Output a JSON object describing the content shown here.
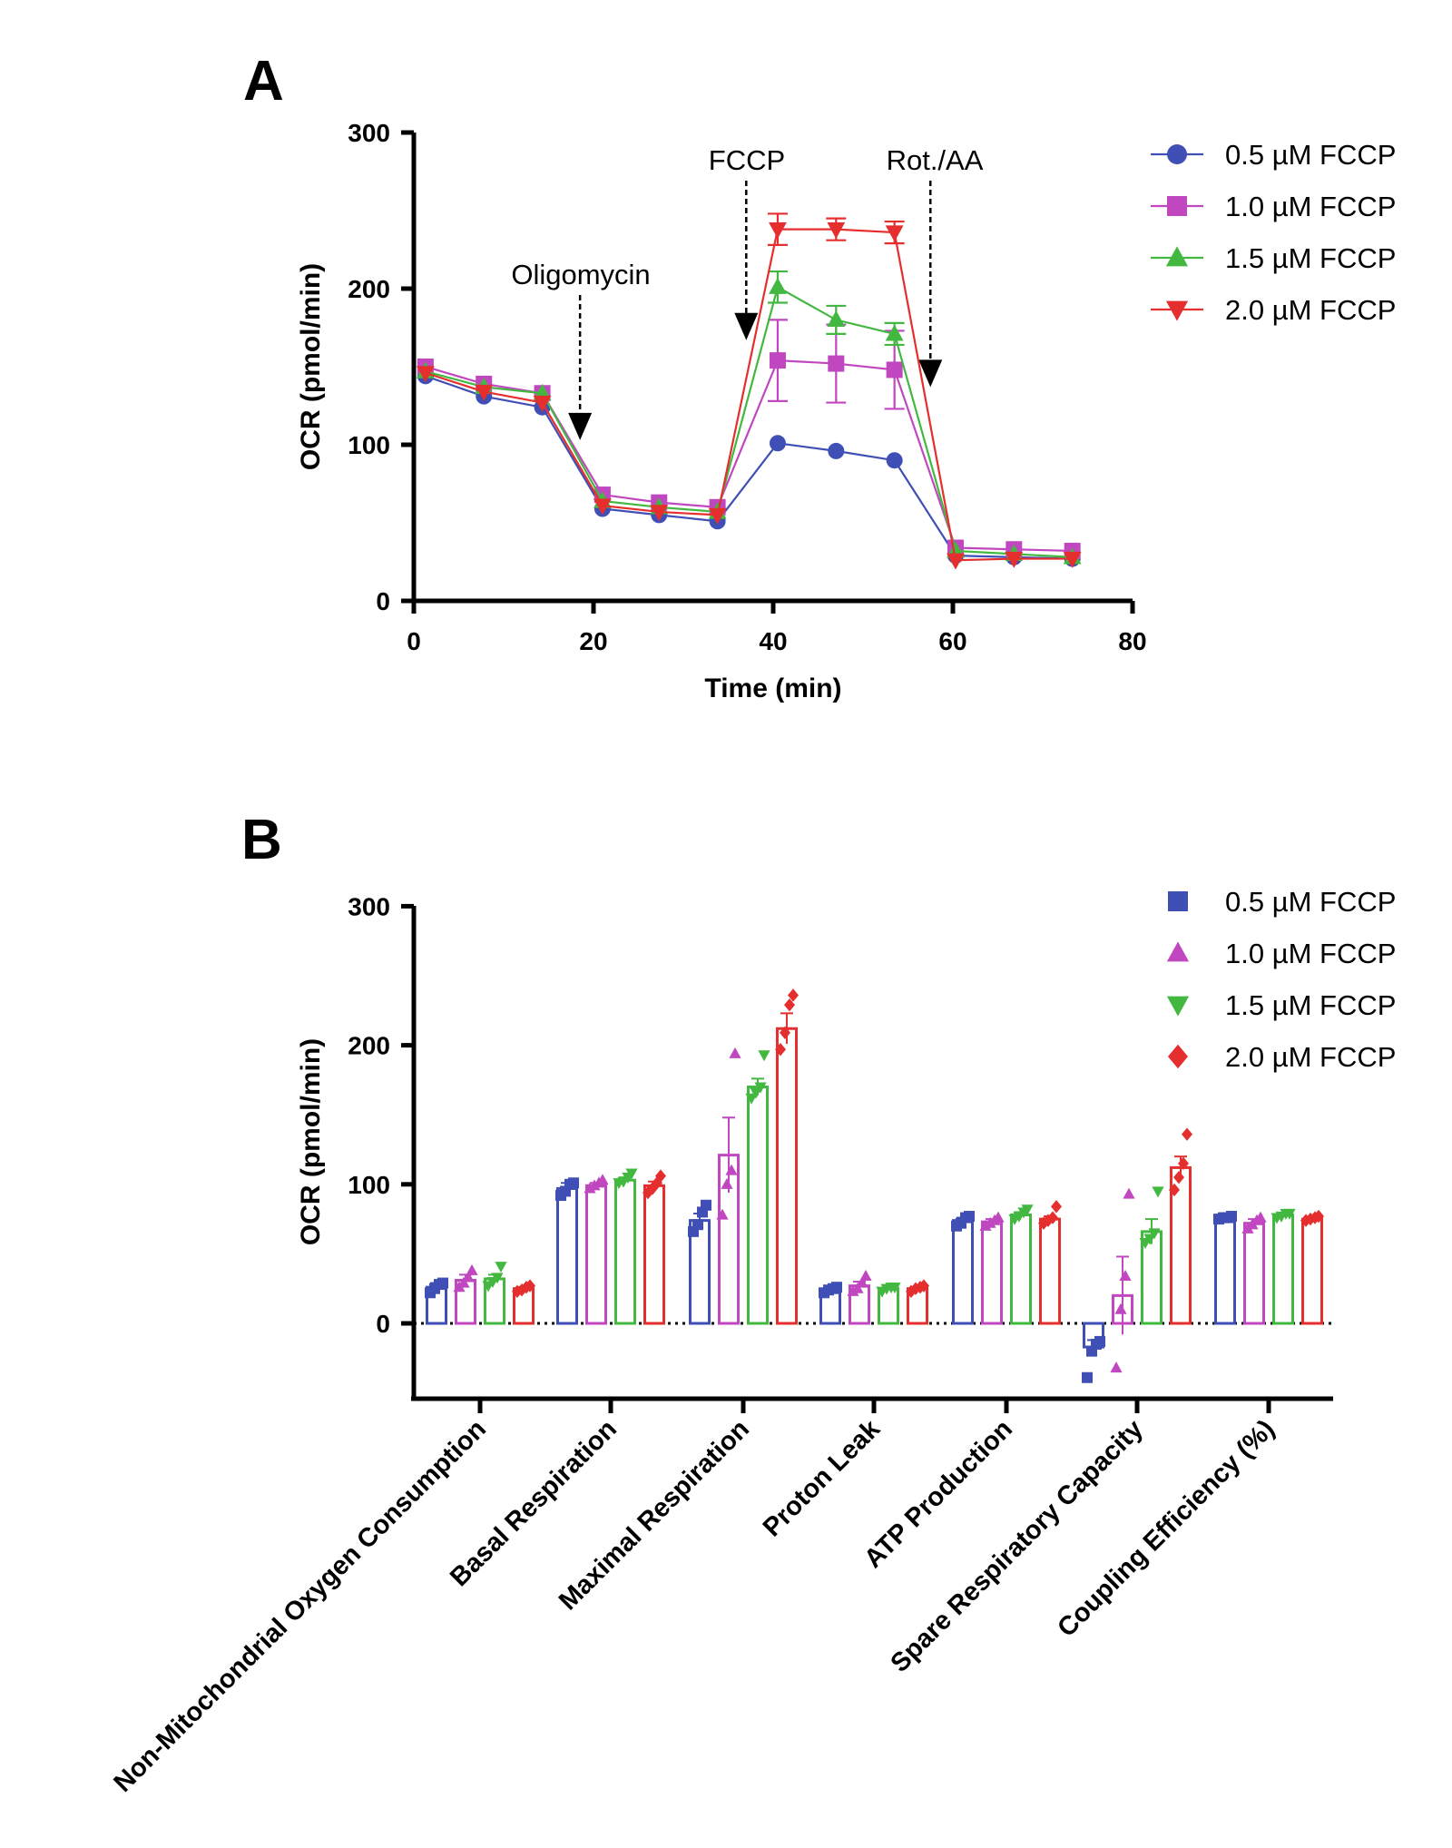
{
  "chart_data": [
    {
      "panel": "A",
      "type": "line",
      "xlabel": "Time (min)",
      "ylabel": "OCR (pmol/min)",
      "xlim": [
        0,
        80
      ],
      "ylim": [
        0,
        300
      ],
      "xticks": [
        0,
        20,
        40,
        60,
        80
      ],
      "yticks": [
        0,
        100,
        200,
        300
      ],
      "x": [
        1.3,
        7.8,
        14.3,
        21,
        27.3,
        33.8,
        40.5,
        47,
        53.5,
        60.3,
        66.8,
        73.3
      ],
      "series": [
        {
          "name": "0.5 µM FCCP",
          "color": "#3f4fb5",
          "marker": "circle",
          "values": [
            144,
            131,
            124,
            59,
            55,
            51,
            101,
            96,
            90,
            29,
            28,
            27
          ],
          "errors": [
            0,
            0,
            0,
            0,
            0,
            0,
            0,
            0,
            0,
            0,
            0,
            0
          ]
        },
        {
          "name": "1.0 µM FCCP",
          "color": "#c047bf",
          "marker": "square",
          "values": [
            150,
            139,
            133,
            68,
            63,
            60,
            154,
            152,
            148,
            34,
            33,
            32
          ],
          "errors": [
            0,
            0,
            0,
            0,
            0,
            0,
            26,
            25,
            25,
            0,
            0,
            0
          ]
        },
        {
          "name": "1.5 µM FCCP",
          "color": "#43b840",
          "marker": "triangle-up",
          "values": [
            147,
            137,
            133,
            64,
            60,
            57,
            201,
            180,
            171,
            32,
            30,
            28
          ],
          "errors": [
            0,
            0,
            0,
            0,
            0,
            0,
            10,
            9,
            7,
            0,
            0,
            0
          ]
        },
        {
          "name": "2.0 µM FCCP",
          "color": "#e52e2e",
          "marker": "triangle-down",
          "values": [
            146,
            134,
            127,
            61,
            57,
            55,
            238,
            238,
            236,
            26,
            27,
            27
          ],
          "errors": [
            0,
            0,
            0,
            0,
            0,
            0,
            10,
            7,
            7,
            0,
            0,
            0
          ]
        }
      ],
      "annotations": [
        {
          "text": "Oligomycin",
          "x": 18.5,
          "arrow_tip_y": 103
        },
        {
          "text": "FCCP",
          "x": 37,
          "arrow_tip_y": 167
        },
        {
          "text": "Rot./AA",
          "x": 57.5,
          "arrow_tip_y": 137
        }
      ],
      "legend_position": "top-right"
    },
    {
      "panel": "B",
      "type": "bar",
      "ylabel": "OCR (pmol/min)",
      "ylim": [
        -45,
        300
      ],
      "yticks": [
        0,
        100,
        200,
        300
      ],
      "categories": [
        "Non-Mitochondrial Oxygen Consumption",
        "Basal Respiration",
        "Maximal Respiration",
        "Proton Leak",
        "ATP Production",
        "Spare Respiratory Capacity",
        "Coupling Efficiency (%)"
      ],
      "series": [
        {
          "name": "0.5 µM FCCP",
          "color": "#3f4fb5",
          "marker": "square",
          "values": [
            26,
            97,
            74,
            24,
            74,
            -17,
            76
          ],
          "errors": [
            3,
            4,
            5,
            1,
            2,
            5,
            1
          ],
          "points": [
            [
              22,
              25,
              28,
              29
            ],
            [
              92,
              95,
              100,
              101
            ],
            [
              66,
              71,
              80,
              85
            ],
            [
              22,
              24,
              25,
              26
            ],
            [
              70,
              72,
              76,
              77
            ],
            [
              -39,
              -20,
              -15,
              -13
            ],
            [
              75,
              76,
              76,
              77
            ]
          ]
        },
        {
          "name": "1.0 µM FCCP",
          "color": "#c047bf",
          "marker": "triangle-up",
          "values": [
            31,
            99,
            121,
            27,
            73,
            20,
            72
          ],
          "errors": [
            4,
            2,
            27,
            3,
            2,
            28,
            3
          ],
          "points": [
            [
              26,
              29,
              33,
              38
            ],
            [
              97,
              99,
              101,
              103
            ],
            [
              78,
              100,
              110,
              194
            ],
            [
              23,
              25,
              29,
              34
            ],
            [
              70,
              72,
              74,
              76
            ],
            [
              -32,
              10,
              34,
              93
            ],
            [
              68,
              71,
              74,
              76
            ]
          ]
        },
        {
          "name": "1.5 µM FCCP",
          "color": "#43b840",
          "marker": "triangle-down",
          "values": [
            32,
            103,
            170,
            25,
            78,
            66,
            78
          ],
          "errors": [
            3,
            2,
            6,
            1,
            2,
            9,
            1
          ],
          "points": [
            [
              27,
              30,
              33,
              41
            ],
            [
              101,
              102,
              105,
              108
            ],
            [
              162,
              166,
              170,
              193
            ],
            [
              23,
              25,
              26,
              26
            ],
            [
              75,
              77,
              80,
              82
            ],
            [
              58,
              61,
              65,
              95
            ],
            [
              76,
              77,
              79,
              79
            ]
          ]
        },
        {
          "name": "2.0 µM FCCP",
          "color": "#e52e2e",
          "marker": "diamond",
          "values": [
            25,
            99,
            212,
            25,
            75,
            112,
            75
          ],
          "errors": [
            1,
            3,
            11,
            1,
            2,
            8,
            1
          ],
          "points": [
            [
              23,
              24,
              26,
              27
            ],
            [
              94,
              97,
              101,
              106
            ],
            [
              197,
              209,
              229,
              236
            ],
            [
              23,
              25,
              26,
              27
            ],
            [
              72,
              74,
              76,
              84
            ],
            [
              96,
              105,
              115,
              136
            ],
            [
              74,
              75,
              76,
              77
            ]
          ]
        }
      ],
      "zero_line": "dotted",
      "legend_position": "top-right"
    }
  ]
}
